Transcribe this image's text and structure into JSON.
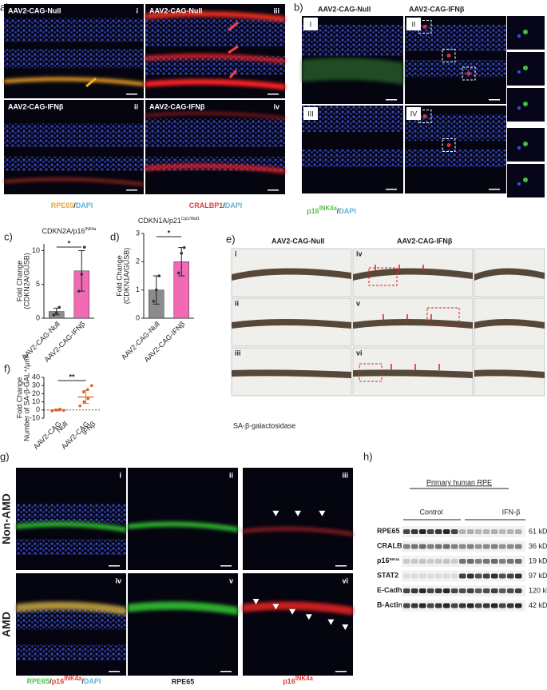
{
  "panel_a": {
    "label": "a)",
    "images": [
      {
        "title": "AAV2-CAG-Null",
        "num": "i"
      },
      {
        "title": "AAV2-CAG-Null",
        "num": "iii"
      },
      {
        "title": "AAV2-CAG-IFNβ",
        "num": "ii"
      },
      {
        "title": "AAV2-CAG-IFNβ",
        "num": "iv"
      }
    ],
    "stain_left": [
      "RPE65",
      "/",
      "DAPI"
    ],
    "stain_right": [
      "CRALBP1",
      "/",
      "DAPI"
    ]
  },
  "panel_b": {
    "label": "b)",
    "header_left": "AAV2-CAG-Null",
    "header_right": "AAV2-CAG-IFNβ",
    "nums": [
      "I",
      "II",
      "III",
      "IV"
    ],
    "stain": [
      "p16",
      "INK4a",
      "/",
      "DAPI"
    ]
  },
  "chart_data": [
    {
      "type": "bar",
      "panel_label": "c)",
      "title": "CDKN2A/p16",
      "title_sup": "INK4a",
      "ylabel": [
        "Fold Change",
        "(CDKN2A/GUSB)"
      ],
      "categories": [
        [
          "AAV2-CAG-Null"
        ],
        [
          "AAV2-CAG-IFNβ"
        ]
      ],
      "values": [
        1,
        7
      ],
      "errors": [
        0.5,
        3
      ],
      "points": [
        [
          0.5,
          0.8,
          1.6
        ],
        [
          4,
          6.5,
          10.5
        ]
      ],
      "colors": [
        "#8c8c8c",
        "#f06ab4"
      ],
      "point_color": "#333333",
      "ylim": [
        0,
        11
      ],
      "yticks": [
        0,
        5,
        10
      ],
      "significance": "*"
    },
    {
      "type": "bar",
      "panel_label": "d)",
      "title": "CDKN1A/p21",
      "title_sup": "Cip1/Waf1",
      "ylabel": [
        "Fold Change",
        "(CDKN1A/GUSB)"
      ],
      "categories": [
        [
          "AAV2-CAG-Null"
        ],
        [
          "AAV2-CAG-IFNβ"
        ]
      ],
      "values": [
        1,
        2
      ],
      "errors": [
        0.5,
        0.5
      ],
      "points": [
        [
          0.6,
          1.0,
          1.5
        ],
        [
          1.6,
          2.3,
          2.5
        ]
      ],
      "colors": [
        "#8c8c8c",
        "#f06ab4"
      ],
      "point_color": "#333333",
      "ylim": [
        0,
        3
      ],
      "yticks": [
        0,
        1,
        2,
        3
      ],
      "significance": "*"
    },
    {
      "type": "dot",
      "panel_label": "f)",
      "ylabel": [
        "Fold Change",
        "Number of SA-β-GAL⁺/µm²"
      ],
      "categories": [
        [
          "AAV2-CAG",
          "Null"
        ],
        [
          "AAV2-CAG",
          "IFNβ"
        ]
      ],
      "values": [
        0,
        16
      ],
      "errors": [
        1,
        8
      ],
      "points": [
        [
          -1,
          0,
          1,
          0,
          0.5,
          -0.5
        ],
        [
          5,
          10,
          14,
          22,
          25,
          30
        ]
      ],
      "colors": [
        "#e07b39",
        "#e07b39"
      ],
      "point_color": "#d9652b",
      "ylim": [
        -10,
        40
      ],
      "yticks": [
        -10,
        0,
        10,
        20,
        30,
        40
      ],
      "significance": "**"
    }
  ],
  "panel_e": {
    "label": "e)",
    "header_left": "AAV2-CAG-Null",
    "header_right": "AAV2-CAG-IFNβ",
    "nums": [
      "i",
      "iv",
      "ii",
      "v",
      "iii",
      "vi"
    ],
    "caption": "SA-β-galactosidase"
  },
  "panel_g": {
    "label": "g)",
    "rows": [
      "Non-AMD",
      "AMD"
    ],
    "nums": [
      "i",
      "ii",
      "iii",
      "iv",
      "v",
      "vi"
    ],
    "caption_merge": [
      "RPE65",
      "/",
      "p16",
      "INK4a",
      "/",
      "DAPI"
    ],
    "caption_green": "RPE65",
    "caption_red": [
      "p16",
      "INK4a"
    ]
  },
  "panel_h": {
    "label": "h)",
    "title": "Primary human RPE",
    "groups": [
      "Control",
      "IFN-β"
    ],
    "rows": [
      {
        "name": "RPE65",
        "size": "61 kDa"
      },
      {
        "name": "CRALBP",
        "size": "36 kDa"
      },
      {
        "name": "p16",
        "sup": "INK4a",
        "size": "19 kDa"
      },
      {
        "name": "STAT2",
        "size": "97 kDa"
      },
      {
        "name": "E-Cadherin",
        "size": "120 kDa"
      },
      {
        "name": "B-Actin",
        "size": "42 kDa"
      }
    ]
  }
}
